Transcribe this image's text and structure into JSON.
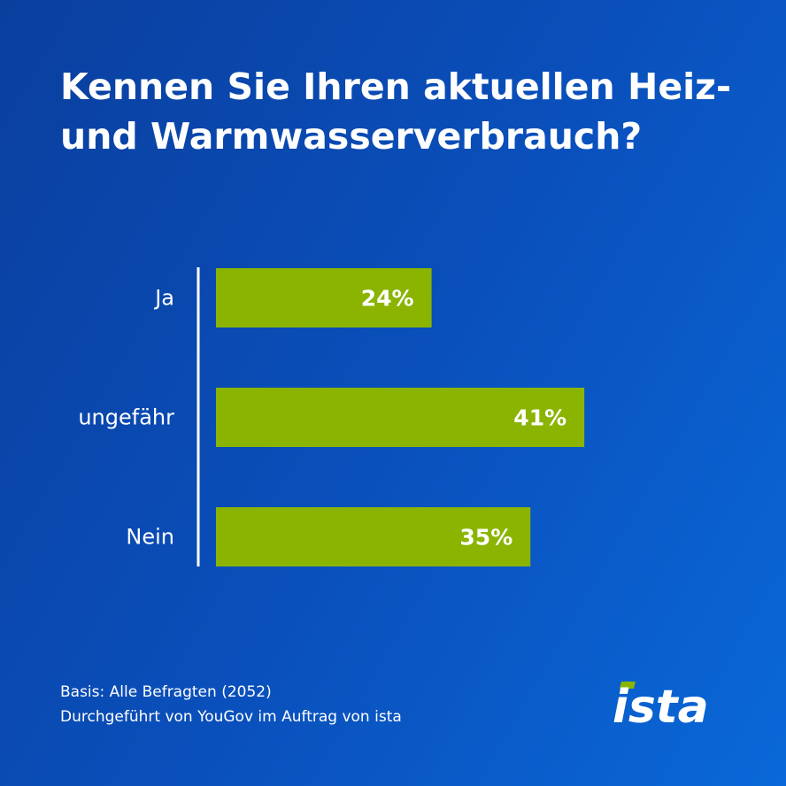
{
  "title": "Kennen Sie Ihren aktuellen Heiz-\nund Warmwasserverbrauch?",
  "chart_data": {
    "type": "bar",
    "orientation": "horizontal",
    "categories": [
      "Ja",
      "ungefähr",
      "Nein"
    ],
    "values": [
      24,
      41,
      35
    ],
    "value_labels": [
      "24%",
      "41%",
      "35%"
    ],
    "unit": "%",
    "xlim": [
      0,
      45
    ],
    "grid": false,
    "legend": "none",
    "bar_color": "#8ab400",
    "axis_color": "#ffffff"
  },
  "footer": {
    "basis": "Basis: Alle Befragten (2052)",
    "source": "Durchgeführt von YouGov im Auftrag von ista"
  },
  "logo": {
    "text": "ista",
    "accent_color": "#8ab400"
  },
  "colors": {
    "background_start": "#0a3f9e",
    "background_end": "#0a68d8",
    "text": "#ffffff"
  }
}
